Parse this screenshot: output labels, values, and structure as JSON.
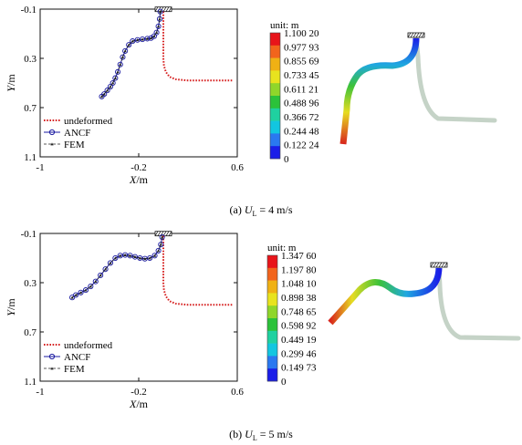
{
  "chart_data": [
    {
      "type": "line",
      "panel_label": "(a)",
      "caption_var": "U",
      "caption_sub": "L",
      "caption_rest": " = 4 m/s",
      "xlabel_var": "X",
      "xlabel_unit": "/m",
      "ylabel_var": "Y",
      "ylabel_unit": "/m",
      "xlim": [
        -1.0,
        0.6
      ],
      "ylim": [
        -0.1,
        1.1
      ],
      "y_inverted": true,
      "xticks": [
        "-1",
        "-0.2",
        "0.6"
      ],
      "yticks": [
        "-0.1",
        "0.3",
        "0.7",
        "1.1"
      ],
      "legend": [
        "undeformed",
        "ANCF",
        "FEM"
      ],
      "legend_position": "bottom-left",
      "series": [
        {
          "name": "undeformed",
          "color": "#d62020",
          "x": [
            0.0,
            0.0,
            0.0,
            0.0,
            0.0,
            0.005,
            0.02,
            0.05,
            0.1,
            0.2,
            0.3,
            0.4,
            0.5,
            0.56
          ],
          "y": [
            -0.08,
            0.0,
            0.1,
            0.2,
            0.3,
            0.36,
            0.41,
            0.45,
            0.47,
            0.48,
            0.48,
            0.48,
            0.48,
            0.48
          ]
        },
        {
          "name": "ANCF",
          "color": "#1a1aa0",
          "x": [
            -0.025,
            -0.03,
            -0.04,
            -0.055,
            -0.075,
            -0.1,
            -0.13,
            -0.17,
            -0.21,
            -0.25,
            -0.28,
            -0.31,
            -0.33,
            -0.35,
            -0.37,
            -0.39,
            -0.41,
            -0.43,
            -0.455,
            -0.48,
            -0.5
          ],
          "y": [
            -0.08,
            -0.02,
            0.04,
            0.09,
            0.12,
            0.135,
            0.14,
            0.145,
            0.15,
            0.16,
            0.19,
            0.24,
            0.29,
            0.35,
            0.41,
            0.46,
            0.5,
            0.53,
            0.56,
            0.59,
            0.61
          ]
        },
        {
          "name": "FEM",
          "color": "#222222",
          "x": [
            -0.025,
            -0.03,
            -0.04,
            -0.055,
            -0.075,
            -0.1,
            -0.13,
            -0.17,
            -0.21,
            -0.25,
            -0.28,
            -0.31,
            -0.33,
            -0.35,
            -0.37,
            -0.39,
            -0.41,
            -0.43,
            -0.455,
            -0.48,
            -0.5
          ],
          "y": [
            -0.08,
            -0.02,
            0.04,
            0.09,
            0.12,
            0.135,
            0.14,
            0.145,
            0.15,
            0.16,
            0.19,
            0.24,
            0.29,
            0.35,
            0.41,
            0.46,
            0.5,
            0.53,
            0.56,
            0.59,
            0.61
          ]
        }
      ],
      "colorbar": {
        "title": "unit: m",
        "labels": [
          "1.100 20",
          "0.977 93",
          "0.855 69",
          "0.733 45",
          "0.611 21",
          "0.488 96",
          "0.366 72",
          "0.244 48",
          "0.122 24",
          "0"
        ],
        "colors": [
          "#e8141a",
          "#f2641c",
          "#f0b114",
          "#e8e31e",
          "#8fd62a",
          "#2bc23a",
          "#1fd1a0",
          "#12c6e0",
          "#2a78f0",
          "#1a1ee8"
        ]
      }
    },
    {
      "type": "line",
      "panel_label": "(b)",
      "caption_var": "U",
      "caption_sub": "L",
      "caption_rest": " = 5 m/s",
      "xlabel_var": "X",
      "xlabel_unit": "/m",
      "ylabel_var": "Y",
      "ylabel_unit": "/m",
      "xlim": [
        -1.0,
        0.6
      ],
      "ylim": [
        -0.1,
        1.1
      ],
      "y_inverted": true,
      "xticks": [
        "-1",
        "-0.2",
        "0.6"
      ],
      "yticks": [
        "-0.1",
        "0.3",
        "0.7",
        "1.1"
      ],
      "legend": [
        "undeformed",
        "ANCF",
        "FEM"
      ],
      "legend_position": "bottom-left",
      "series": [
        {
          "name": "undeformed",
          "color": "#d62020",
          "x": [
            0.0,
            0.0,
            0.0,
            0.0,
            0.0,
            0.005,
            0.02,
            0.05,
            0.1,
            0.2,
            0.3,
            0.4,
            0.5,
            0.56
          ],
          "y": [
            -0.08,
            0.0,
            0.1,
            0.2,
            0.3,
            0.36,
            0.41,
            0.45,
            0.47,
            0.48,
            0.48,
            0.48,
            0.48,
            0.48
          ]
        },
        {
          "name": "ANCF",
          "color": "#1a1aa0",
          "x": [
            -0.01,
            -0.02,
            -0.04,
            -0.07,
            -0.11,
            -0.15,
            -0.19,
            -0.23,
            -0.27,
            -0.31,
            -0.35,
            -0.39,
            -0.43,
            -0.47,
            -0.51,
            -0.55,
            -0.59,
            -0.63,
            -0.67,
            -0.71,
            -0.74
          ],
          "y": [
            -0.07,
            -0.01,
            0.04,
            0.08,
            0.1,
            0.105,
            0.1,
            0.09,
            0.08,
            0.075,
            0.08,
            0.1,
            0.14,
            0.19,
            0.24,
            0.29,
            0.33,
            0.36,
            0.38,
            0.4,
            0.42
          ]
        },
        {
          "name": "FEM",
          "color": "#222222",
          "x": [
            -0.01,
            -0.02,
            -0.04,
            -0.07,
            -0.11,
            -0.15,
            -0.19,
            -0.23,
            -0.27,
            -0.31,
            -0.35,
            -0.39,
            -0.43,
            -0.47,
            -0.51,
            -0.55,
            -0.59,
            -0.63,
            -0.67,
            -0.71,
            -0.74
          ],
          "y": [
            -0.07,
            -0.01,
            0.04,
            0.08,
            0.1,
            0.105,
            0.1,
            0.09,
            0.08,
            0.075,
            0.08,
            0.1,
            0.14,
            0.19,
            0.24,
            0.29,
            0.33,
            0.36,
            0.38,
            0.4,
            0.42
          ]
        }
      ],
      "colorbar": {
        "title": "unit: m",
        "labels": [
          "1.347 60",
          "1.197 80",
          "1.048 10",
          "0.898 38",
          "0.748 65",
          "0.598 92",
          "0.449 19",
          "0.299 46",
          "0.149 73",
          "0"
        ],
        "colors": [
          "#e8141a",
          "#f2641c",
          "#f0b114",
          "#e8e31e",
          "#8fd62a",
          "#2bc23a",
          "#1fd1a0",
          "#12c6e0",
          "#2a78f0",
          "#1a1ee8"
        ]
      }
    }
  ]
}
